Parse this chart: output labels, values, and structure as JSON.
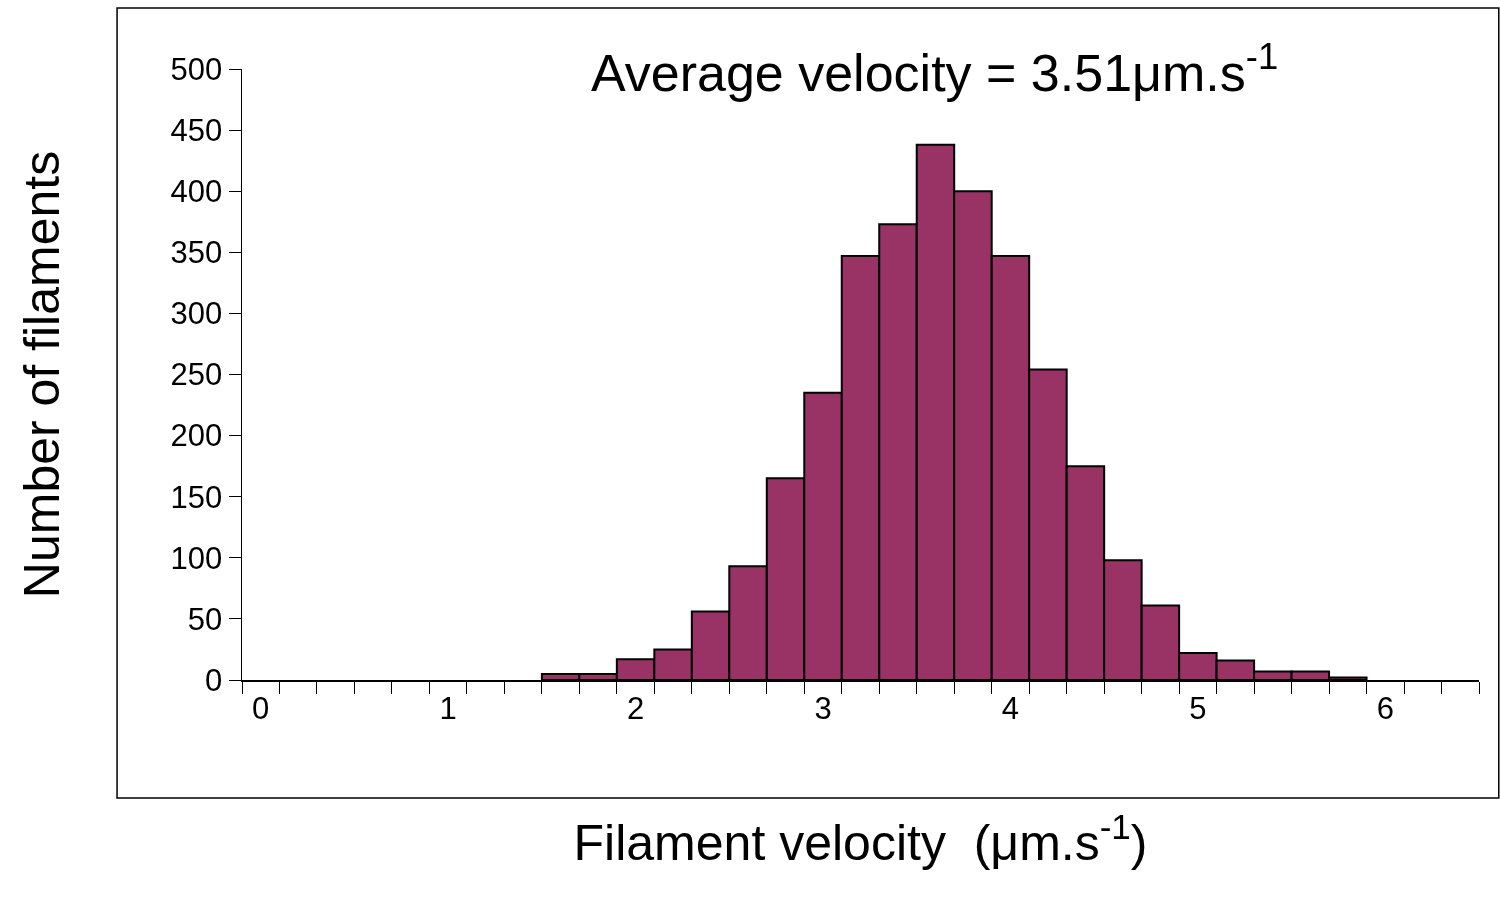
{
  "chart_data": {
    "type": "histogram",
    "xlabel": "Filament velocity  (μm.s$^{-1}$)",
    "ylabel": "Number of filaments",
    "annotations": [
      "Average velocity = 3.51μm.s$^{-1}$"
    ],
    "bins": [
      -0.1,
      0.1,
      0.3,
      0.5,
      0.7,
      0.9,
      1.1,
      1.3,
      1.5,
      1.7,
      1.9,
      2.1,
      2.3,
      2.5,
      2.7,
      2.9,
      3.1,
      3.3,
      3.5,
      3.7,
      3.9,
      4.1,
      4.3,
      4.5,
      4.7,
      4.9,
      5.1,
      5.3,
      5.5,
      5.7,
      5.9,
      6.1,
      6.3,
      6.5
    ],
    "values": [
      0,
      0,
      0,
      0,
      0,
      0,
      0,
      0,
      5,
      5,
      17,
      25,
      56,
      93,
      165,
      235,
      347,
      373,
      438,
      400,
      347,
      254,
      175,
      98,
      61,
      22,
      16,
      7,
      7,
      2,
      0,
      0,
      0
    ],
    "color": "#993366",
    "xlim": [
      -0.1,
      6.5
    ],
    "xticks": [
      0,
      1,
      2,
      3,
      4,
      5,
      6,
      {
        "value": -0.1,
        "label": null
      },
      {
        "value": 0.1,
        "label": null
      },
      {
        "value": 0.3,
        "label": null
      },
      {
        "value": 0.5,
        "label": null
      },
      {
        "value": 0.7,
        "label": null
      },
      {
        "value": 0.9,
        "label": null
      },
      {
        "value": 1.1,
        "label": null
      },
      {
        "value": 1.3,
        "label": null
      },
      {
        "value": 1.5,
        "label": null
      },
      {
        "value": 1.7,
        "label": null
      },
      {
        "value": 1.9,
        "label": null
      },
      {
        "value": 2.1,
        "label": null
      },
      {
        "value": 2.3,
        "label": null
      },
      {
        "value": 2.5,
        "label": null
      },
      {
        "value": 2.7,
        "label": null
      },
      {
        "value": 2.9,
        "label": null
      },
      {
        "value": 3.1,
        "label": null
      },
      {
        "value": 3.3,
        "label": null
      },
      {
        "value": 3.5,
        "label": null
      },
      {
        "value": 3.7,
        "label": null
      },
      {
        "value": 3.9,
        "label": null
      },
      {
        "value": 4.1,
        "label": null
      },
      {
        "value": 4.3,
        "label": null
      },
      {
        "value": 4.5,
        "label": null
      },
      {
        "value": 4.7,
        "label": null
      },
      {
        "value": 4.9,
        "label": null
      },
      {
        "value": 5.1,
        "label": null
      },
      {
        "value": 5.3,
        "label": null
      },
      {
        "value": 5.5,
        "label": null
      },
      {
        "value": 5.7,
        "label": null
      },
      {
        "value": 5.9,
        "label": null
      },
      {
        "value": 6.1,
        "label": null
      },
      {
        "value": 6.3,
        "label": null
      },
      {
        "value": 6.5,
        "label": null
      }
    ],
    "ylim": [
      0,
      500
    ],
    "yticks": [
      0,
      50,
      100,
      150,
      200,
      250,
      300,
      350,
      400,
      450,
      500
    ]
  }
}
